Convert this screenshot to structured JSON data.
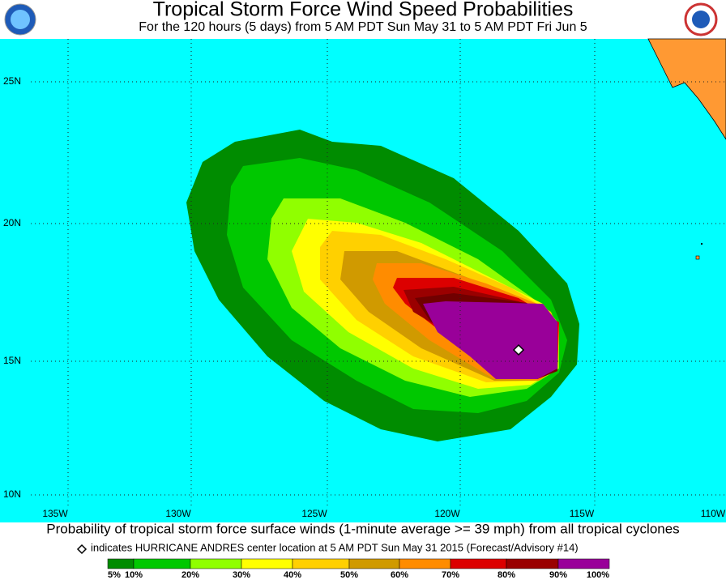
{
  "header": {
    "title": "Tropical Storm Force Wind Speed Probabilities",
    "subtitle": "For the 120 hours (5 days) from 5 AM PDT Sun May 31 to 5 AM PDT Fri Jun 5"
  },
  "map": {
    "lat_labels": [
      "25N",
      "20N",
      "15N",
      "10N"
    ],
    "lon_labels": [
      "135W",
      "130W",
      "125W",
      "120W",
      "115W",
      "110W"
    ]
  },
  "footer": {
    "caption": "Probability of tropical storm force surface winds (1-minute average >= 39 mph) from all tropical cyclones",
    "note": "indicates HURRICANE ANDRES center location at 5 AM PDT Sun May 31 2015 (Forecast/Advisory #14)"
  },
  "legend": {
    "labels": [
      "5%",
      "10%",
      "20%",
      "30%",
      "40%",
      "50%",
      "60%",
      "70%",
      "80%",
      "90%",
      "100%"
    ]
  }
}
